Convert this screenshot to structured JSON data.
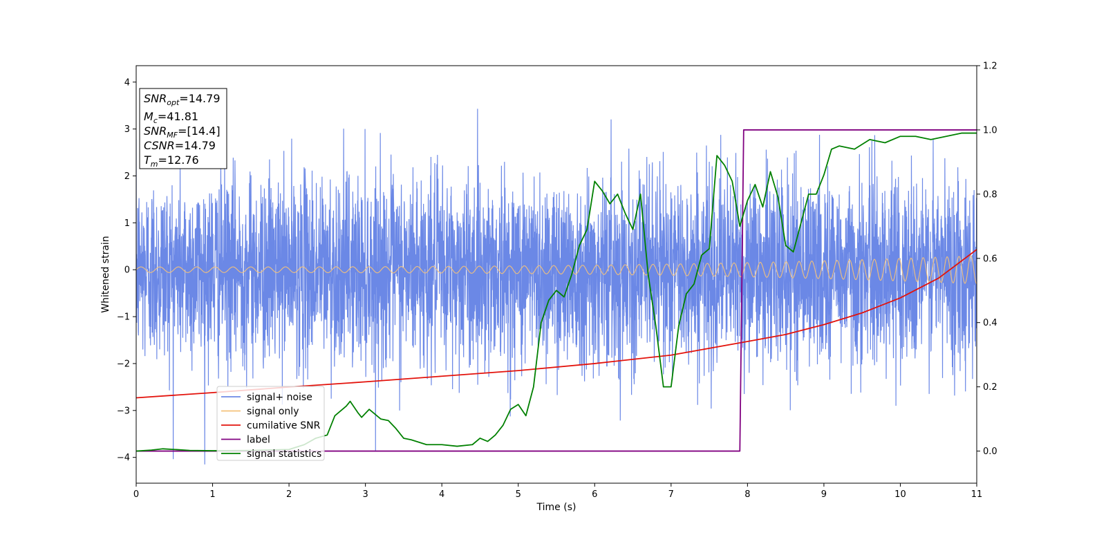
{
  "chart_data": {
    "type": "line",
    "xlabel": "Time (s)",
    "ylabel": "Whitened strain",
    "xlim": [
      0,
      11
    ],
    "ylim_left": [
      -4.55,
      4.35
    ],
    "ylim_right": [
      -0.1,
      1.2
    ],
    "x_ticks": [
      0,
      1,
      2,
      3,
      4,
      5,
      6,
      7,
      8,
      9,
      10,
      11
    ],
    "x_tick_labels": [
      "0",
      "1",
      "2",
      "3",
      "4",
      "5",
      "6",
      "7",
      "8",
      "9",
      "10",
      "11"
    ],
    "y_left_ticks": [
      -4,
      -3,
      -2,
      -1,
      0,
      1,
      2,
      3,
      4
    ],
    "y_left_tick_labels": [
      "−4",
      "−3",
      "−2",
      "−1",
      "0",
      "1",
      "2",
      "3",
      "4"
    ],
    "y_right_ticks": [
      0.0,
      0.2,
      0.4,
      0.6,
      0.8,
      1.0,
      1.2
    ],
    "y_right_tick_labels": [
      "0.0",
      "0.2",
      "0.4",
      "0.6",
      "0.8",
      "1.0",
      "1.2"
    ],
    "legend_position": "lower-left",
    "series": [
      {
        "name": "signal+ noise",
        "axis": "left",
        "color": "#6b88e6",
        "noise_sigma": 1.0,
        "noise_range": [
          -4.15,
          3.7
        ]
      },
      {
        "name": "signal only",
        "axis": "left",
        "color": "#f5c27a",
        "amplitude_start": 0.06,
        "amplitude_end": 0.3,
        "frequency_start_hz": 4.0,
        "frequency_end_hz": 6.5
      },
      {
        "name": "cumilative SNR",
        "axis": "left",
        "color": "#e3120b",
        "x": [
          0,
          1,
          2,
          3,
          4,
          5,
          6,
          7,
          8,
          8.5,
          9,
          9.5,
          10,
          10.5,
          11
        ],
        "values": [
          -2.73,
          -2.62,
          -2.5,
          -2.39,
          -2.27,
          -2.15,
          -2.0,
          -1.82,
          -1.53,
          -1.38,
          -1.17,
          -0.92,
          -0.6,
          -0.18,
          0.43
        ]
      },
      {
        "name": "label",
        "axis": "right",
        "color": "#800080",
        "x": [
          0,
          7.9,
          7.95,
          11
        ],
        "values": [
          0.0,
          0.0,
          1.0,
          1.0
        ]
      },
      {
        "name": "signal statistics",
        "axis": "right",
        "color": "#008000",
        "x": [
          0,
          0.2,
          0.35,
          0.5,
          0.7,
          1.0,
          1.5,
          2.0,
          2.2,
          2.35,
          2.5,
          2.6,
          2.75,
          2.8,
          2.9,
          2.95,
          3.05,
          3.15,
          3.2,
          3.3,
          3.4,
          3.5,
          3.6,
          3.8,
          4.0,
          4.2,
          4.4,
          4.5,
          4.6,
          4.7,
          4.8,
          4.9,
          5.0,
          5.1,
          5.2,
          5.3,
          5.4,
          5.5,
          5.6,
          5.7,
          5.8,
          5.9,
          6.0,
          6.1,
          6.2,
          6.3,
          6.4,
          6.5,
          6.6,
          6.7,
          6.8,
          6.9,
          7.0,
          7.1,
          7.2,
          7.3,
          7.4,
          7.5,
          7.6,
          7.7,
          7.8,
          7.9,
          8.0,
          8.1,
          8.2,
          8.3,
          8.4,
          8.5,
          8.6,
          8.7,
          8.8,
          8.9,
          9.0,
          9.1,
          9.2,
          9.4,
          9.6,
          9.8,
          10.0,
          10.2,
          10.4,
          10.6,
          10.8,
          11.0
        ],
        "values": [
          0.0,
          0.003,
          0.007,
          0.005,
          0.002,
          0.001,
          0.002,
          0.005,
          0.02,
          0.04,
          0.05,
          0.11,
          0.14,
          0.155,
          0.12,
          0.105,
          0.13,
          0.11,
          0.1,
          0.095,
          0.07,
          0.04,
          0.035,
          0.02,
          0.02,
          0.015,
          0.02,
          0.04,
          0.03,
          0.05,
          0.08,
          0.13,
          0.145,
          0.11,
          0.2,
          0.4,
          0.47,
          0.5,
          0.48,
          0.55,
          0.64,
          0.69,
          0.84,
          0.81,
          0.77,
          0.8,
          0.74,
          0.69,
          0.8,
          0.55,
          0.39,
          0.2,
          0.2,
          0.39,
          0.49,
          0.52,
          0.61,
          0.63,
          0.92,
          0.89,
          0.84,
          0.7,
          0.78,
          0.83,
          0.76,
          0.87,
          0.79,
          0.64,
          0.62,
          0.71,
          0.8,
          0.8,
          0.86,
          0.94,
          0.95,
          0.94,
          0.97,
          0.96,
          0.98,
          0.98,
          0.97,
          0.98,
          0.99,
          0.99
        ]
      }
    ],
    "annotation": {
      "lines": [
        {
          "main": "SNR",
          "sub": "opt",
          "value": "=14.79"
        },
        {
          "main": "M",
          "sub": "c",
          "value": "=41.81"
        },
        {
          "main": "SNR",
          "sub": "MF",
          "value": "=[14.4]"
        },
        {
          "main": "CSNR",
          "sub": "",
          "value": "=14.79"
        },
        {
          "main": "T",
          "sub": "m",
          "value": "=12.76"
        }
      ]
    }
  }
}
